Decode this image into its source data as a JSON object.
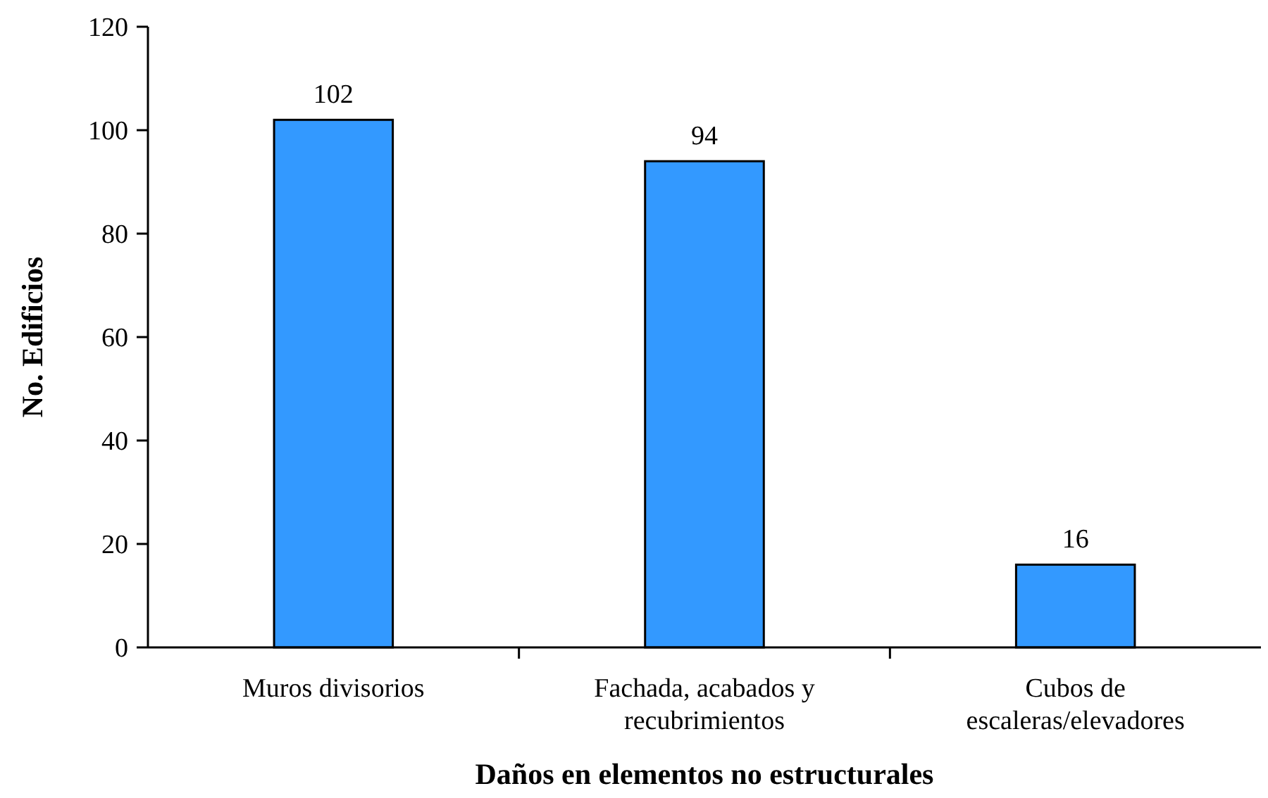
{
  "chart_data": {
    "type": "bar",
    "xlabel": "Daños en elementos no estructurales",
    "ylabel": "No. Edificios",
    "categories": [
      "Muros divisorios",
      "Fachada, acabados y recubrimientos",
      "Cubos de escaleras/elevadores"
    ],
    "values": [
      102,
      94,
      16
    ],
    "color": "#3399ff",
    "ylim": [
      0,
      120
    ],
    "yticks": [
      0,
      20,
      40,
      60,
      80,
      100,
      120
    ],
    "grid": false,
    "data_labels": true
  }
}
